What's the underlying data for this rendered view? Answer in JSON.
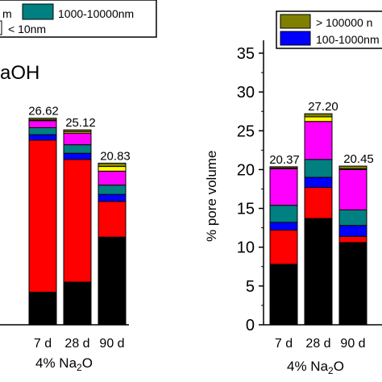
{
  "colors": {
    "gt100000": "#808000",
    "r10000_100000": "#ffff00",
    "r1000_10000": "#008080",
    "r100_1000": "#0000ff",
    "r10_100": "#ff00ff",
    "lt10_pink": "#ff0000",
    "lt10": "#000000"
  },
  "chart_data": [
    {
      "type": "bar",
      "stacked": true,
      "panel": "left",
      "title": "aOH",
      "xlabel": "4% Na2O",
      "ylabel": "",
      "categories": [
        "7 d",
        "28 d",
        "90 d"
      ],
      "totals_labels": [
        "26.62",
        "25.12",
        "20.83"
      ],
      "totals": [
        26.62,
        25.12,
        20.83
      ],
      "ylim": [
        0,
        35
      ],
      "legend": [
        "m",
        "1000-10000nm",
        "< 10nm"
      ],
      "legend_placement": "top",
      "series": [
        {
          "name": "< 10nm",
          "color_key": "lt10",
          "values": [
            4.2,
            5.5,
            11.3
          ]
        },
        {
          "name": "",
          "color_key": "lt10_pink",
          "values": [
            19.6,
            15.8,
            4.6
          ]
        },
        {
          "name": "",
          "color_key": "r100_1000",
          "values": [
            0.7,
            0.8,
            0.9
          ]
        },
        {
          "name": "1000-10000nm",
          "color_key": "r1000_10000",
          "values": [
            0.9,
            1.1,
            1.2
          ]
        },
        {
          "name": "",
          "color_key": "r10_100",
          "values": [
            0.9,
            1.5,
            1.8
          ]
        },
        {
          "name": "",
          "color_key": "r10000_100000",
          "values": [
            0.1,
            0.2,
            0.6
          ]
        },
        {
          "name": "",
          "color_key": "gt100000",
          "values": [
            0.22,
            0.22,
            0.43
          ]
        }
      ]
    },
    {
      "type": "bar",
      "stacked": true,
      "panel": "right",
      "title": "",
      "xlabel": "4% Na2O",
      "ylabel": "% pore volume",
      "categories": [
        "7 d",
        "28 d",
        "90 d"
      ],
      "totals_labels": [
        "20.37",
        "27.20",
        "20.45"
      ],
      "totals": [
        20.37,
        27.2,
        20.45
      ],
      "ylim": [
        0,
        35
      ],
      "yticks": [
        "0",
        "5",
        "10",
        "15",
        "20",
        "25",
        "30",
        "35"
      ],
      "legend": [
        "> 100000 n",
        "100-1000nm"
      ],
      "legend_placement": "top-right",
      "series": [
        {
          "name": "",
          "color_key": "lt10",
          "values": [
            7.8,
            13.7,
            10.6
          ]
        },
        {
          "name": "",
          "color_key": "lt10_pink",
          "values": [
            4.4,
            4.0,
            0.8
          ]
        },
        {
          "name": "100-1000nm",
          "color_key": "r100_1000",
          "values": [
            1.0,
            1.3,
            1.4
          ]
        },
        {
          "name": "",
          "color_key": "r1000_10000",
          "values": [
            2.2,
            2.3,
            2.0
          ]
        },
        {
          "name": "",
          "color_key": "r10_100",
          "values": [
            4.7,
            4.9,
            5.2
          ]
        },
        {
          "name": "",
          "color_key": "r10000_100000",
          "values": [
            0.1,
            0.6,
            0.1
          ]
        },
        {
          "name": "> 100000 n",
          "color_key": "gt100000",
          "values": [
            0.17,
            0.4,
            0.35
          ]
        }
      ]
    }
  ],
  "labels": {
    "left_title": "aOH",
    "left_xlabel_prefix": "4% Na",
    "left_xlabel_sub": "2",
    "left_xlabel_suffix": "O",
    "right_xlabel_prefix": "4% Na",
    "right_xlabel_sub": "2",
    "right_xlabel_suffix": "O",
    "right_ylabel": "% pore volume",
    "legend_left_1": "m",
    "legend_left_2": "1000-10000nm",
    "legend_left_3": "< 10nm",
    "legend_right_1": "> 100000 n",
    "legend_right_2": "100-1000nm"
  }
}
